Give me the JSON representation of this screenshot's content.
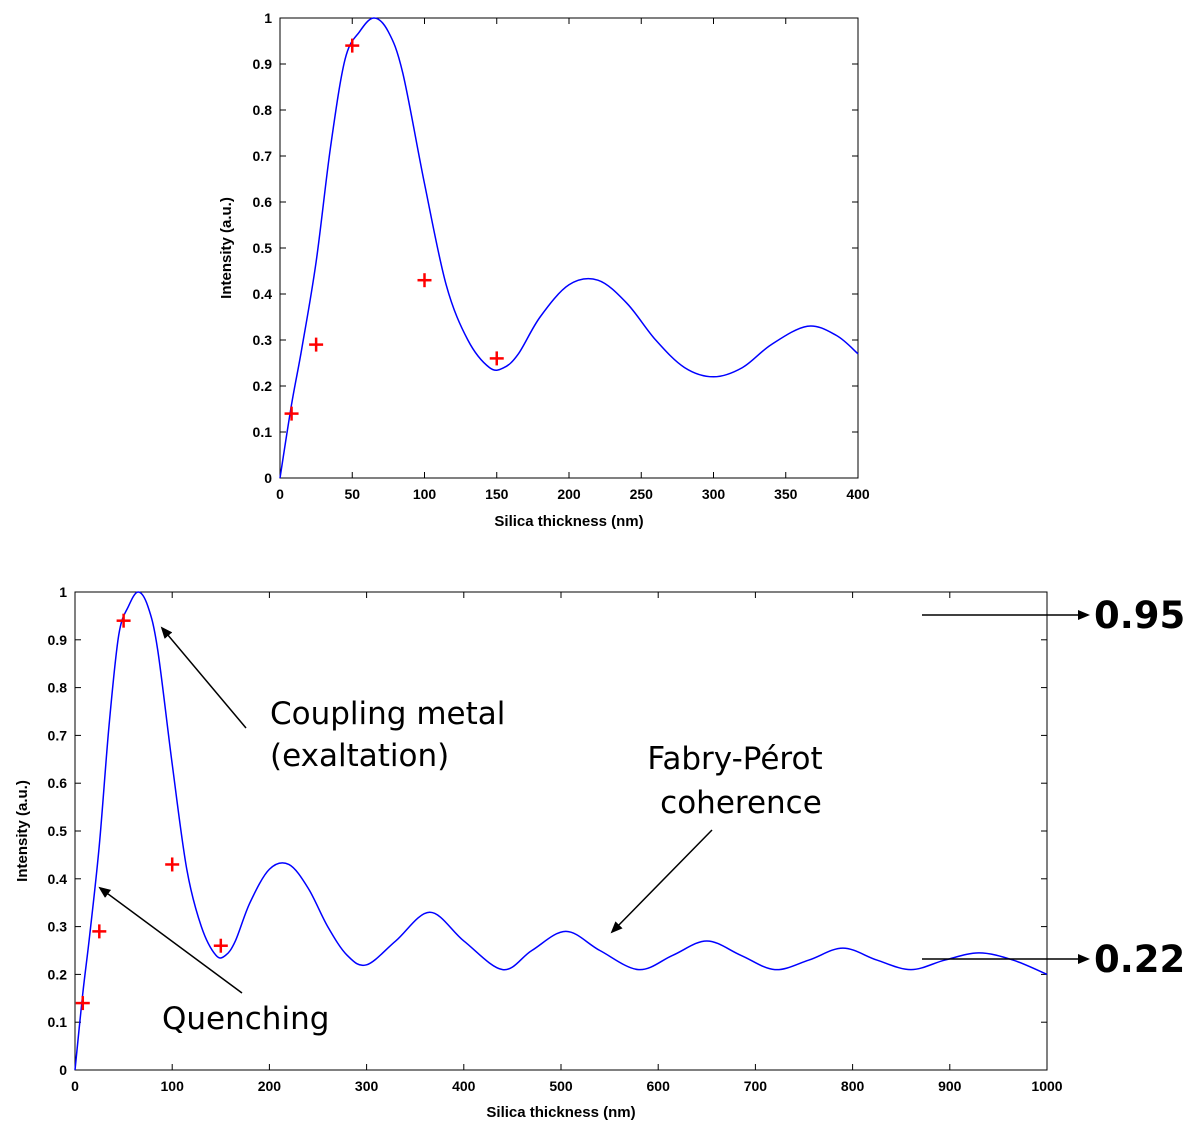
{
  "chart_data": [
    {
      "type": "line",
      "title": "",
      "xlabel": "Silica thickness (nm)",
      "ylabel": "Intensity (a.u.)",
      "xlim": [
        0,
        400
      ],
      "ylim": [
        0,
        1
      ],
      "xticks": [
        0,
        50,
        100,
        150,
        200,
        250,
        300,
        350,
        400
      ],
      "yticks": [
        0,
        0.1,
        0.2,
        0.3,
        0.4,
        0.5,
        0.6,
        0.7,
        0.8,
        0.9,
        1
      ],
      "ytick_labels": [
        "0",
        "0.1",
        "0.2",
        "0.3",
        "0.4",
        "0.5",
        "0.6",
        "0.7",
        "0.8",
        "0.9",
        "1"
      ],
      "curve": {
        "color": "#0000ff",
        "x": [
          0,
          8,
          15,
          25,
          35,
          45,
          55,
          65,
          75,
          85,
          100,
          115,
          130,
          145,
          155,
          165,
          180,
          200,
          220,
          240,
          260,
          280,
          300,
          320,
          340,
          365,
          385,
          400
        ],
        "y": [
          0,
          0.16,
          0.28,
          0.47,
          0.72,
          0.91,
          0.97,
          1.0,
          0.97,
          0.88,
          0.64,
          0.42,
          0.3,
          0.24,
          0.24,
          0.27,
          0.35,
          0.42,
          0.43,
          0.38,
          0.3,
          0.24,
          0.22,
          0.24,
          0.29,
          0.33,
          0.31,
          0.27
        ]
      },
      "points": {
        "color": "#ff0000",
        "marker": "+",
        "x": [
          8,
          25,
          50,
          100,
          150
        ],
        "y": [
          0.14,
          0.29,
          0.94,
          0.43,
          0.26
        ]
      }
    },
    {
      "type": "line",
      "title": "",
      "xlabel": "Silica thickness (nm)",
      "ylabel": "Intensity (a.u.)",
      "xlim": [
        0,
        1000
      ],
      "ylim": [
        0,
        1
      ],
      "xticks": [
        0,
        100,
        200,
        300,
        400,
        500,
        600,
        700,
        800,
        900,
        1000
      ],
      "yticks": [
        0,
        0.1,
        0.2,
        0.3,
        0.4,
        0.5,
        0.6,
        0.7,
        0.8,
        0.9,
        1
      ],
      "ytick_labels": [
        "0",
        "0.1",
        "0.2",
        "0.3",
        "0.4",
        "0.5",
        "0.6",
        "0.7",
        "0.8",
        "0.9",
        "1"
      ],
      "curve": {
        "color": "#0000ff",
        "x": [
          0,
          8,
          15,
          25,
          35,
          45,
          55,
          65,
          75,
          85,
          100,
          115,
          130,
          145,
          155,
          165,
          180,
          200,
          220,
          240,
          260,
          280,
          300,
          330,
          365,
          400,
          440,
          470,
          505,
          540,
          580,
          615,
          650,
          685,
          720,
          755,
          790,
          825,
          860,
          895,
          930,
          965,
          1000
        ],
        "y": [
          0,
          0.16,
          0.28,
          0.47,
          0.72,
          0.91,
          0.97,
          1.0,
          0.97,
          0.88,
          0.64,
          0.42,
          0.3,
          0.24,
          0.24,
          0.27,
          0.35,
          0.42,
          0.43,
          0.38,
          0.3,
          0.24,
          0.22,
          0.27,
          0.33,
          0.27,
          0.21,
          0.25,
          0.29,
          0.25,
          0.21,
          0.24,
          0.27,
          0.24,
          0.21,
          0.23,
          0.255,
          0.23,
          0.21,
          0.23,
          0.245,
          0.23,
          0.2
        ]
      },
      "points": {
        "color": "#ff0000",
        "marker": "+",
        "x": [
          8,
          25,
          50,
          100,
          150
        ],
        "y": [
          0.14,
          0.29,
          0.94,
          0.43,
          0.26
        ]
      },
      "annotations": [
        {
          "lines": [
            "Coupling metal",
            "(exaltation)"
          ]
        },
        {
          "lines": [
            "Fabry-Pérot",
            "coherence"
          ]
        },
        {
          "lines": [
            "Quenching"
          ]
        }
      ],
      "side_values": [
        "0.95",
        "0.22"
      ]
    }
  ]
}
